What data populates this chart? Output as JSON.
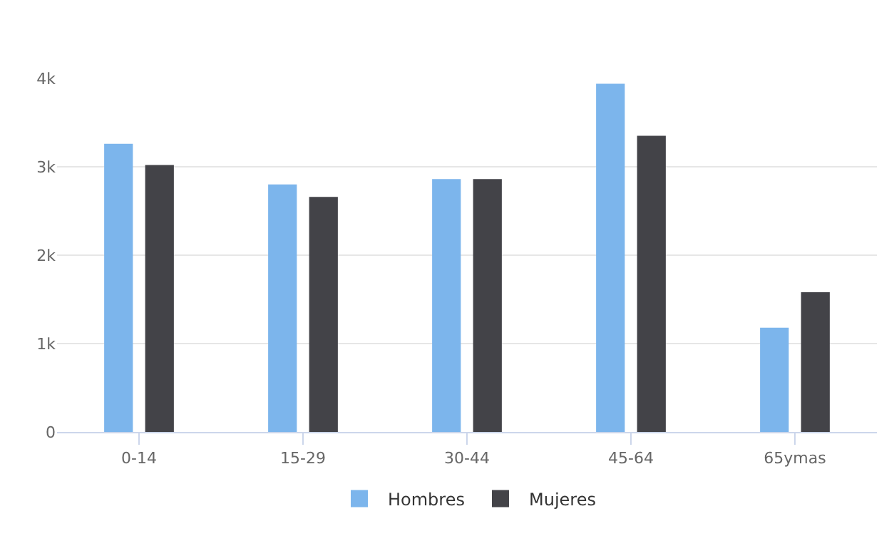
{
  "chart_data": {
    "type": "bar",
    "categories": [
      "0-14",
      "15-29",
      "30-44",
      "45-64",
      "65ymas"
    ],
    "series": [
      {
        "name": "Hombres",
        "color": "#7cb5ec",
        "values": [
          3260,
          2800,
          2860,
          3940,
          1180
        ]
      },
      {
        "name": "Mujeres",
        "color": "#434348",
        "values": [
          3020,
          2660,
          2860,
          3350,
          1580
        ]
      }
    ],
    "ylim": [
      0,
      4000
    ],
    "yticks": [
      0,
      {
        "value": 1000,
        "label": "1k"
      },
      {
        "value": 2000,
        "label": "2k"
      },
      {
        "value": 3000,
        "label": "3k"
      },
      {
        "value": 4000,
        "label": "4k"
      }
    ],
    "grid": "y",
    "legend": "bottom"
  }
}
